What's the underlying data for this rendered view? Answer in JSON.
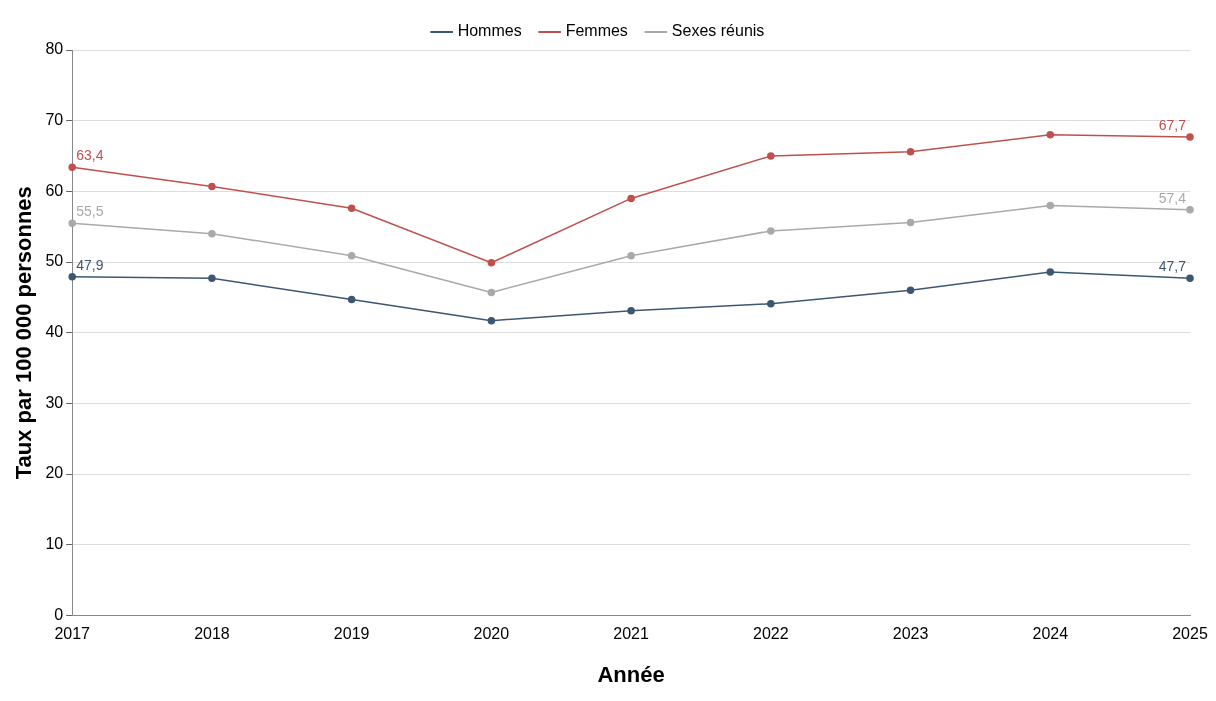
{
  "chart_data": {
    "type": "line",
    "xlabel": "Année",
    "ylabel": "Taux par 100 000 personnes",
    "categories": [
      "2017",
      "2018",
      "2019",
      "2020",
      "2021",
      "2022",
      "2023",
      "2024",
      "2025"
    ],
    "ylim": [
      0,
      80
    ],
    "yticks": [
      0,
      10,
      20,
      30,
      40,
      50,
      60,
      70,
      80
    ],
    "grid": "y",
    "legend": "top",
    "marker": "circle",
    "line_style": "solid",
    "series": [
      {
        "name": "Hommes",
        "color": "#3d5671",
        "values": [
          47.9,
          47.7,
          44.7,
          41.7,
          43.1,
          44.1,
          46.0,
          48.6,
          47.7
        ],
        "value_labels": [
          "47,9",
          null,
          null,
          null,
          null,
          null,
          null,
          null,
          "47,7"
        ]
      },
      {
        "name": "Femmes",
        "color": "#c0504d",
        "values": [
          63.4,
          60.7,
          57.6,
          49.9,
          59.0,
          65.0,
          65.6,
          68.0,
          67.7
        ],
        "value_labels": [
          "63,4",
          null,
          null,
          null,
          null,
          null,
          null,
          null,
          "67,7"
        ]
      },
      {
        "name": "Sexes réunis",
        "color": "#a9a9a9",
        "values": [
          55.5,
          54.0,
          50.9,
          45.7,
          50.9,
          54.4,
          55.6,
          58.0,
          57.4
        ],
        "value_labels": [
          "55,5",
          null,
          null,
          null,
          null,
          null,
          null,
          null,
          "57,4"
        ]
      }
    ]
  }
}
